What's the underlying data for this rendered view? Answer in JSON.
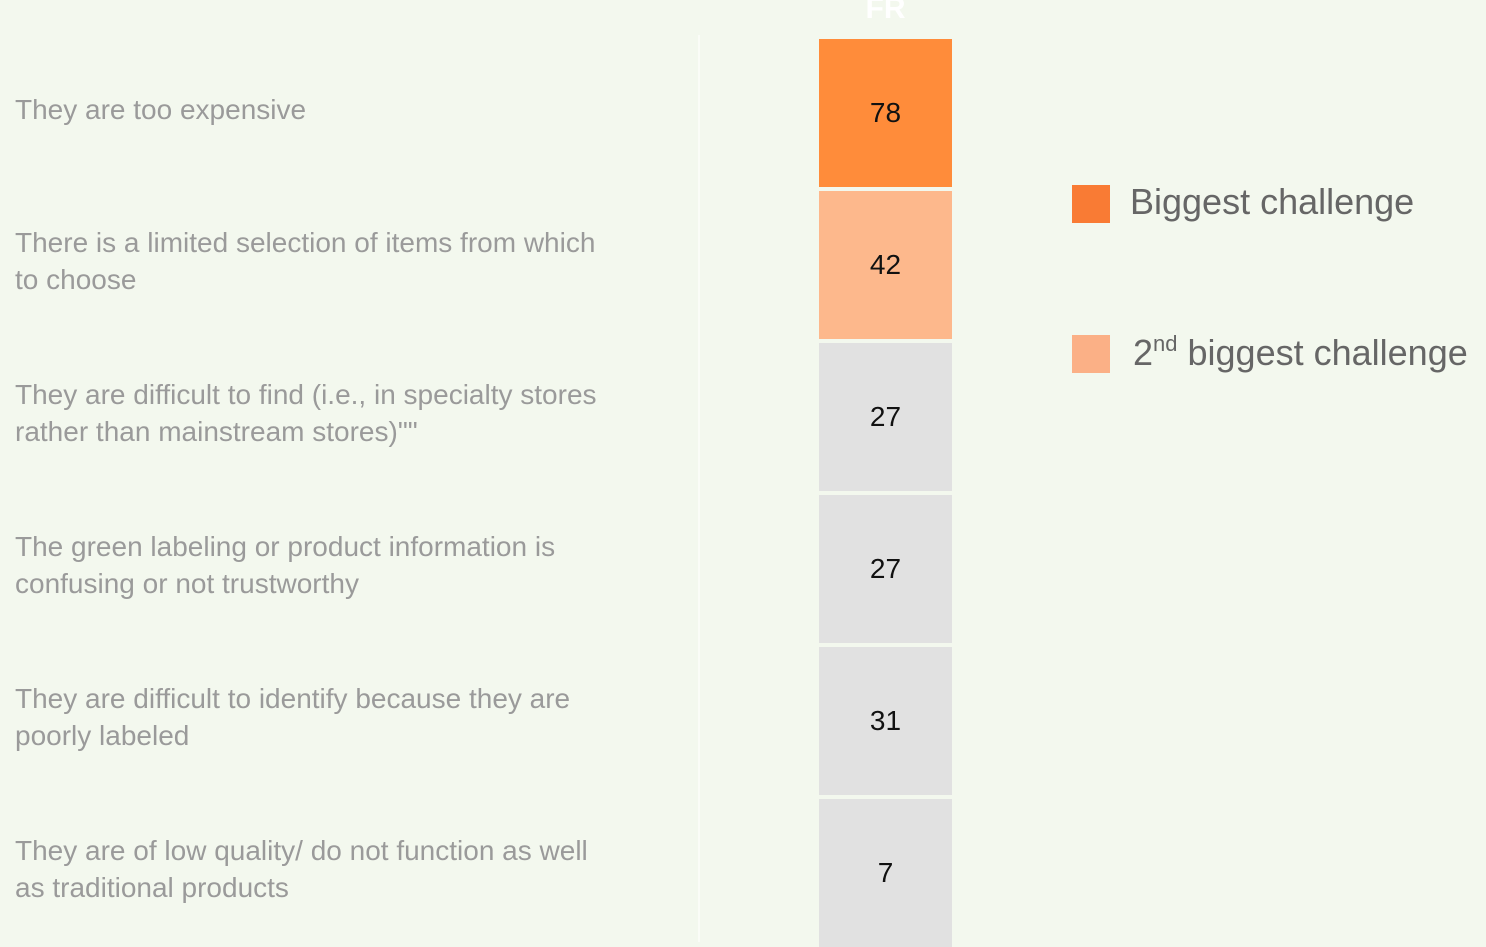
{
  "header": "FR",
  "rows": [
    {
      "label": [
        "They are too expensive"
      ],
      "value": 78,
      "color": "#ff8c3a"
    },
    {
      "label": [
        "There is a limited selection of items from which",
        "to choose"
      ],
      "value": 42,
      "color": "#fdb88c"
    },
    {
      "label": [
        "They are difficult to find (i.e., in specialty stores",
        "rather than mainstream stores)\"\""
      ],
      "value": 27,
      "color": "#e1e1e1"
    },
    {
      "label": [
        "The green labeling or product information is",
        "confusing or not trustworthy"
      ],
      "value": 27,
      "color": "#e1e1e1"
    },
    {
      "label": [
        "They are difficult to identify because they are",
        "poorly labeled"
      ],
      "value": 31,
      "color": "#e1e1e1"
    },
    {
      "label": [
        "They are of low quality/ do not function as well",
        "as traditional products"
      ],
      "value": 7,
      "color": "#e1e1e1"
    }
  ],
  "legend": [
    {
      "parts": [
        "Biggest challenge"
      ],
      "color": "#f97b34"
    },
    {
      "parts": [
        "2",
        "nd",
        " biggest challenge"
      ],
      "color": "#fbb086"
    }
  ]
}
